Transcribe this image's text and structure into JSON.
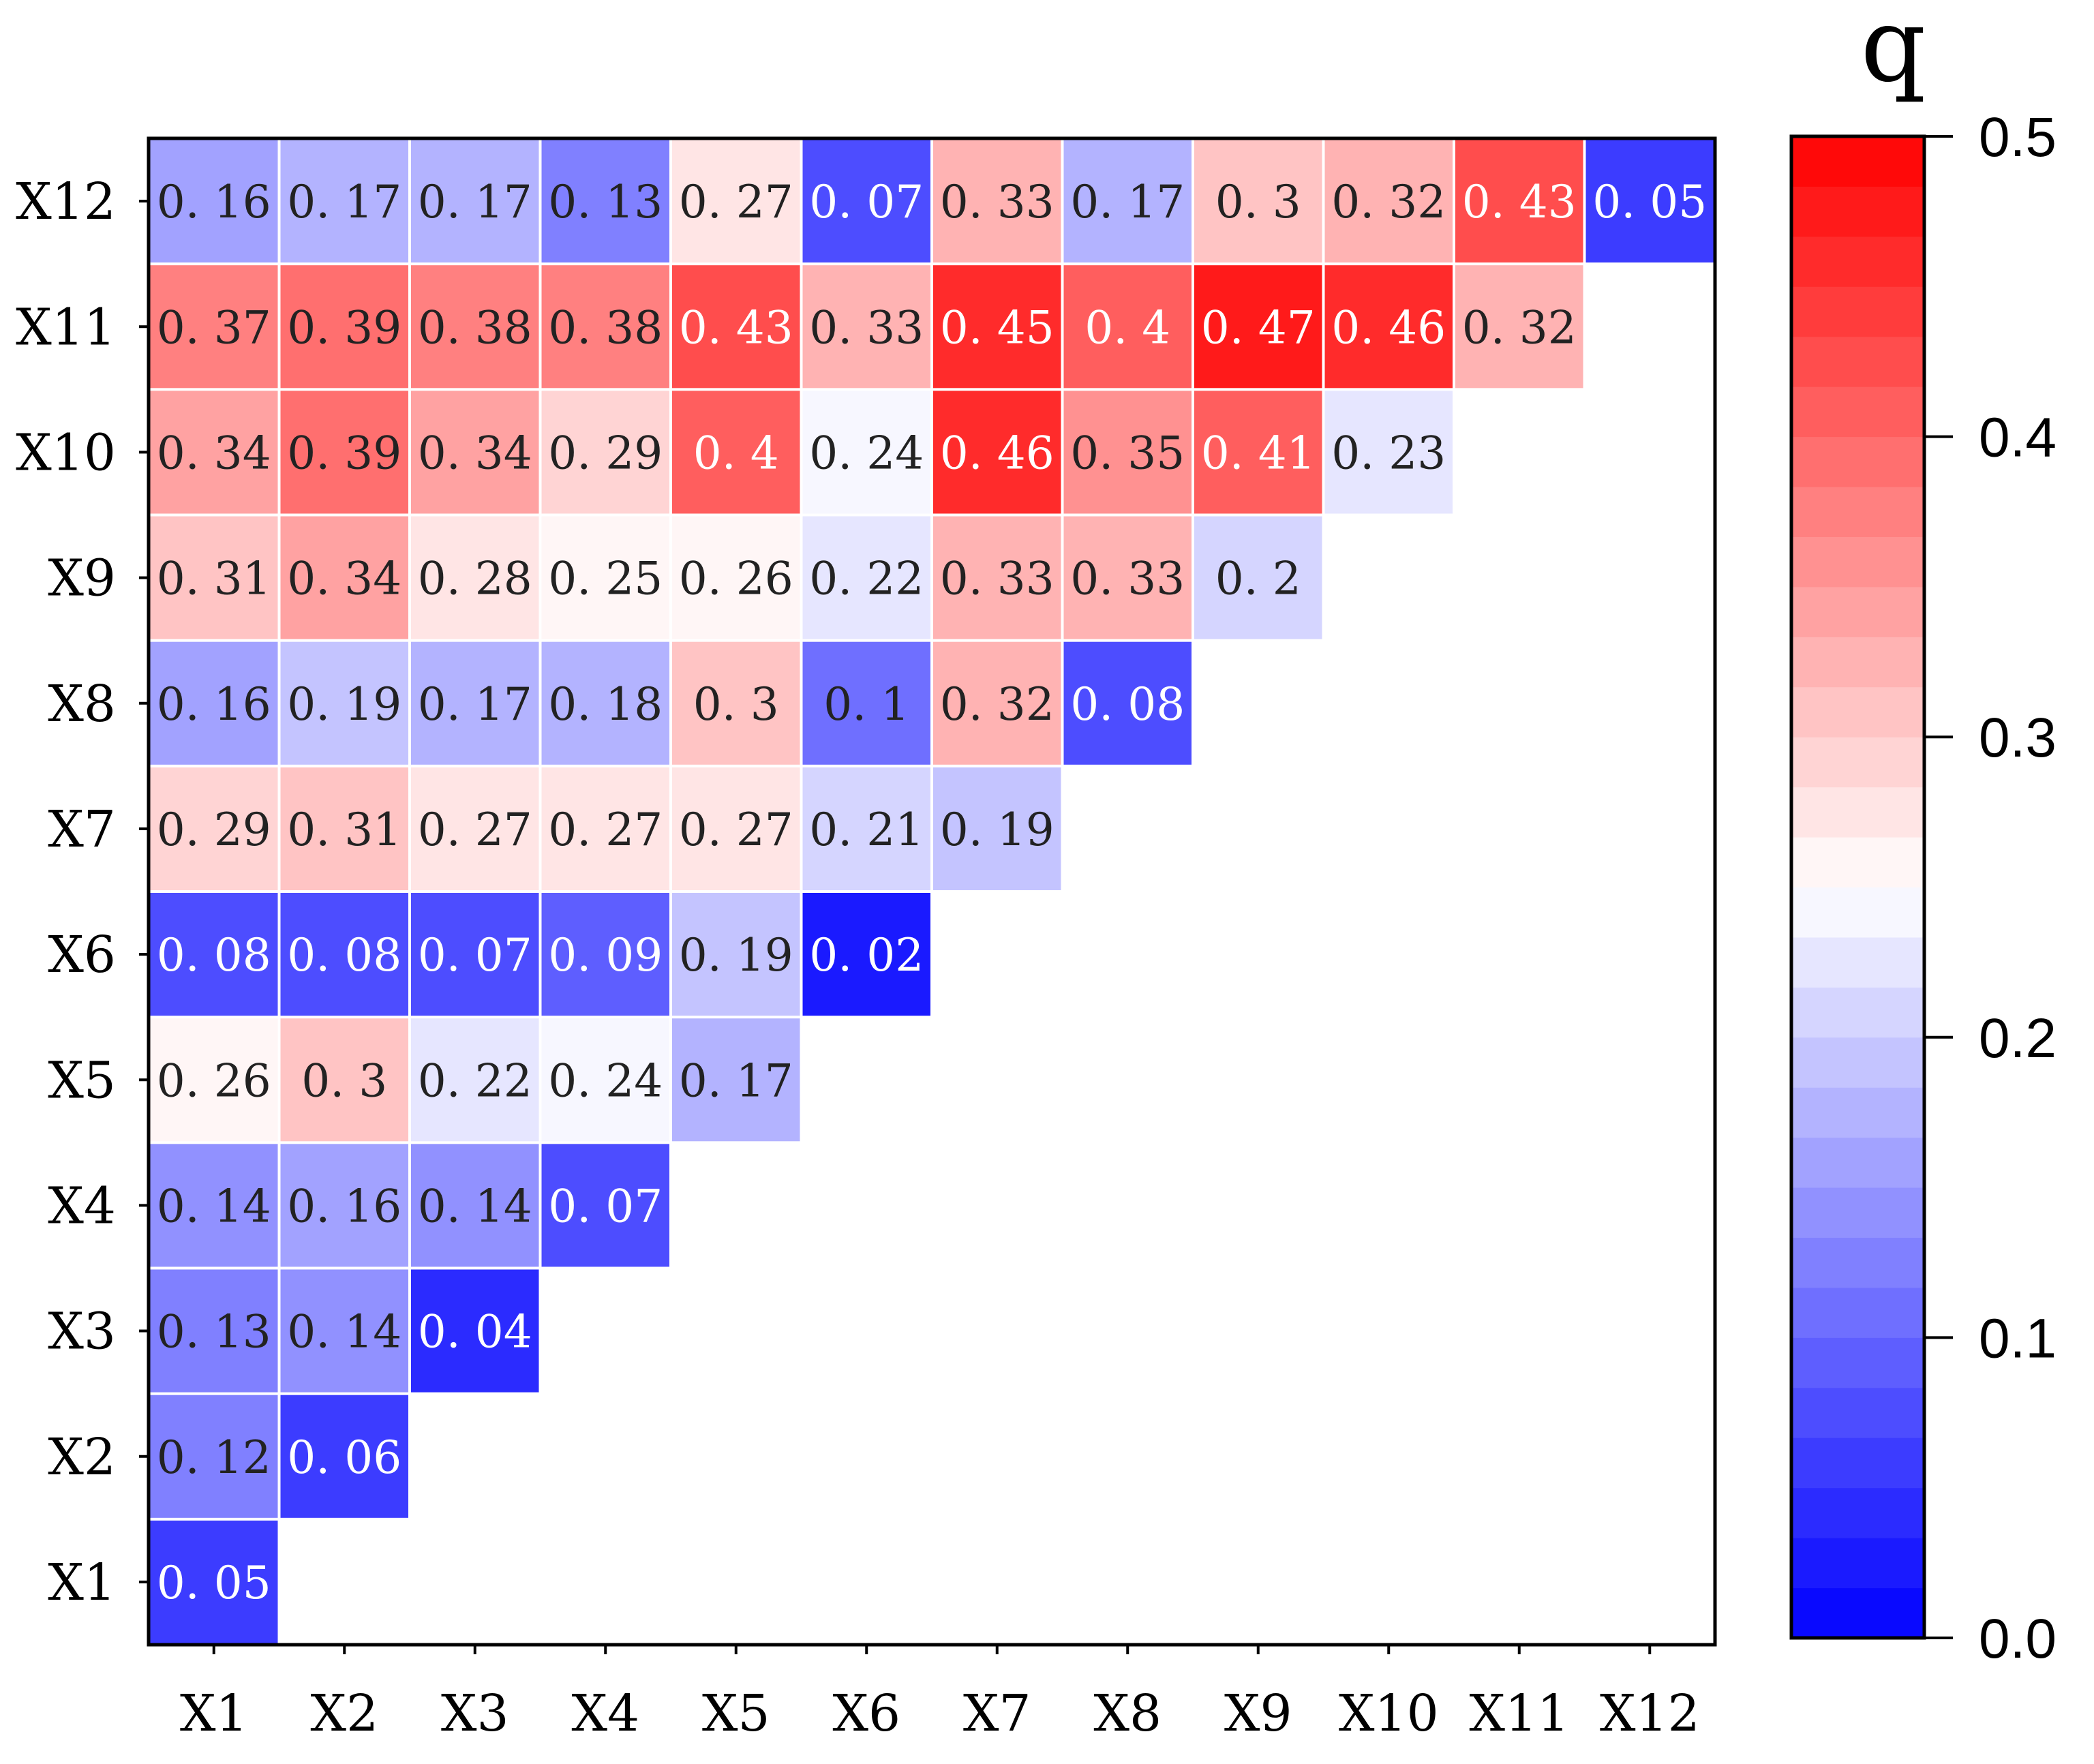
{
  "chart_data": {
    "type": "heatmap",
    "title": "",
    "xlabel": "",
    "ylabel": "",
    "x_categories": [
      "X1",
      "X2",
      "X3",
      "X4",
      "X5",
      "X6",
      "X7",
      "X8",
      "X9",
      "X10",
      "X11",
      "X12"
    ],
    "y_categories": [
      "X1",
      "X2",
      "X3",
      "X4",
      "X5",
      "X6",
      "X7",
      "X8",
      "X9",
      "X10",
      "X11",
      "X12"
    ],
    "value_labels": [
      [
        "0.05"
      ],
      [
        "0.12",
        "0.06"
      ],
      [
        "0.13",
        "0.14",
        "0.04"
      ],
      [
        "0.14",
        "0.16",
        "0.14",
        "0.07"
      ],
      [
        "0.26",
        "0.3",
        "0.22",
        "0.24",
        "0.17"
      ],
      [
        "0.08",
        "0.08",
        "0.07",
        "0.09",
        "0.19",
        "0.02"
      ],
      [
        "0.29",
        "0.31",
        "0.27",
        "0.27",
        "0.27",
        "0.21",
        "0.19"
      ],
      [
        "0.16",
        "0.19",
        "0.17",
        "0.18",
        "0.3",
        "0.1",
        "0.32",
        "0.08"
      ],
      [
        "0.31",
        "0.34",
        "0.28",
        "0.25",
        "0.26",
        "0.22",
        "0.33",
        "0.33",
        "0.2"
      ],
      [
        "0.34",
        "0.39",
        "0.34",
        "0.29",
        "0.4",
        "0.24",
        "0.46",
        "0.35",
        "0.41",
        "0.23"
      ],
      [
        "0.37",
        "0.39",
        "0.38",
        "0.38",
        "0.43",
        "0.33",
        "0.45",
        "0.4",
        "0.47",
        "0.46",
        "0.32"
      ],
      [
        "0.16",
        "0.17",
        "0.17",
        "0.13",
        "0.27",
        "0.07",
        "0.33",
        "0.17",
        "0.3",
        "0.32",
        "0.43",
        "0.05"
      ]
    ],
    "colorbar": {
      "title": "q",
      "min": 0.0,
      "max": 0.5,
      "ticks": [
        "0.0",
        "0.1",
        "0.2",
        "0.3",
        "0.4",
        "0.5"
      ],
      "colors": {
        "low": "#0000ff",
        "mid": "#ffffff",
        "high": "#ff0000"
      },
      "steps": 30
    },
    "grid": false,
    "legend": "right"
  }
}
